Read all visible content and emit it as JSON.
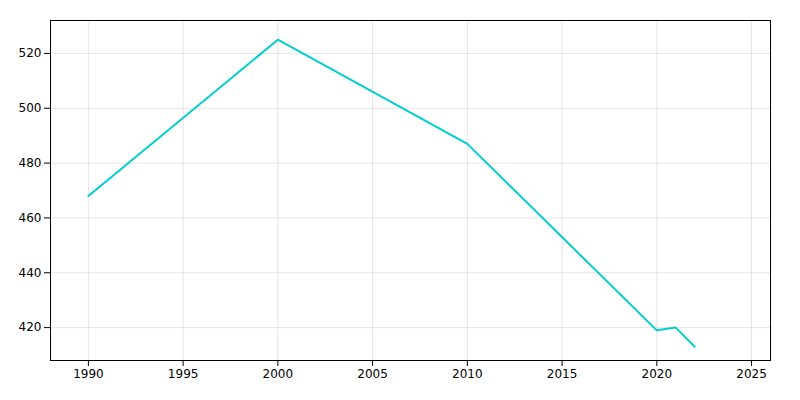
{
  "chart_data": {
    "type": "line",
    "x": [
      1990,
      2000,
      2010,
      2020,
      2021,
      2022
    ],
    "values": [
      468,
      525,
      487,
      419,
      420,
      413
    ],
    "color": "#00CED1",
    "xlim": [
      1988,
      2026
    ],
    "ylim": [
      408,
      532
    ],
    "xticks": [
      1990,
      1995,
      2000,
      2005,
      2010,
      2015,
      2020,
      2025
    ],
    "yticks": [
      420,
      440,
      460,
      480,
      500,
      520
    ],
    "grid": true
  }
}
